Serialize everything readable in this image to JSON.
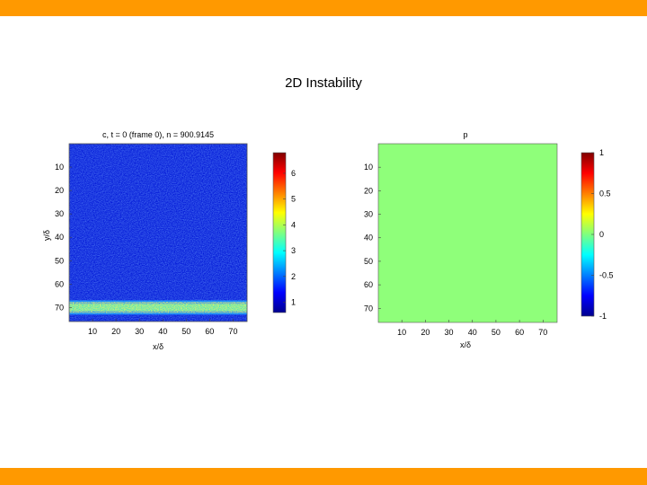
{
  "slide": {
    "title": "2D Instability",
    "accent_color": "#ff9900"
  },
  "chart_data": [
    {
      "type": "heatmap",
      "title": "c, t = 0 (frame 0), n = 900.9145",
      "xlabel": "x/δ",
      "ylabel": "y/δ",
      "xticks": [
        "10",
        "20",
        "30",
        "40",
        "50",
        "60",
        "70"
      ],
      "yticks": [
        "10",
        "20",
        "30",
        "40",
        "50",
        "60",
        "70"
      ],
      "xlim": [
        0,
        76
      ],
      "ylim": [
        0,
        76
      ],
      "y_reversed": true,
      "field": "noise floor ≈ 1 everywhere; thin high-concentration band at y ≈ 70",
      "band_y": [
        68.5,
        71.5
      ],
      "colormap": "jet",
      "colorbar": {
        "ticks": [
          "1",
          "2",
          "3",
          "4",
          "5",
          "6"
        ],
        "range": [
          0.6,
          6.8
        ]
      }
    },
    {
      "type": "heatmap",
      "title": "p",
      "xlabel": "x/δ",
      "ylabel": "",
      "xticks": [
        "10",
        "20",
        "30",
        "40",
        "50",
        "60",
        "70"
      ],
      "yticks": [
        "10",
        "20",
        "30",
        "40",
        "50",
        "60",
        "70"
      ],
      "xlim": [
        0,
        76
      ],
      "ylim": [
        0,
        76
      ],
      "y_reversed": true,
      "uniform_value": 0,
      "uniform_color": "#8fff7a",
      "colormap": "jet",
      "colorbar": {
        "ticks": [
          "1",
          "0.5",
          "0",
          "-0.5",
          "-1"
        ],
        "range": [
          -1,
          1
        ]
      }
    }
  ]
}
